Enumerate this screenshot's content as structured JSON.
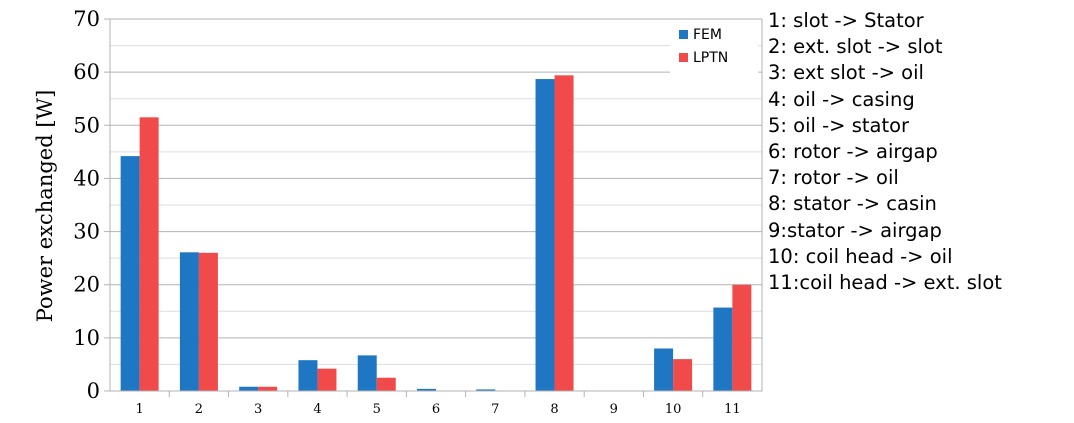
{
  "chart_data": {
    "type": "bar",
    "title": "",
    "xlabel": "",
    "ylabel": "Power exchanged [W]",
    "ylim": [
      0,
      70
    ],
    "yticks": [
      0,
      10,
      20,
      30,
      40,
      50,
      60,
      70
    ],
    "grid": true,
    "legend": "top-right",
    "categories": [
      "1",
      "2",
      "3",
      "4",
      "5",
      "6",
      "7",
      "8",
      "9",
      "10",
      "11"
    ],
    "series": [
      {
        "name": "FEM",
        "color": "#1f77c4",
        "values": [
          44.2,
          26.1,
          0.8,
          5.8,
          6.7,
          0.4,
          0.3,
          58.7,
          0,
          8.0,
          15.7
        ]
      },
      {
        "name": "LPTN",
        "color": "#f04a4a",
        "values": [
          51.5,
          26.0,
          0.8,
          4.2,
          2.5,
          0,
          0,
          59.4,
          0,
          6.0,
          20.0
        ]
      }
    ],
    "category_legend": [
      "1: slot -> Stator",
      "2: ext. slot -> slot",
      "3: ext slot -> oil",
      "4: oil -> casing",
      "5: oil -> stator",
      "6: rotor -> airgap",
      "7: rotor -> oil",
      "8: stator -> casin",
      "9:stator -> airgap",
      "10: coil head -> oil",
      "11:coil head -> ext. slot"
    ]
  }
}
